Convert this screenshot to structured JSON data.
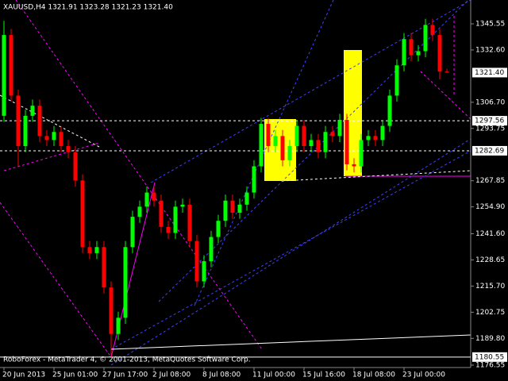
{
  "chart_data": {
    "type": "candlestick",
    "title": "XAUUSD,H4  1321.91 1323.28 1321.23 1321.40",
    "footer": "RoboForex - MetaTrader 4, © 2001-2013, MetaQuotes Software Corp.",
    "categories": [
      "20 Jun 2013",
      null,
      null,
      null,
      null,
      null,
      null,
      "25 Jun 01:00",
      null,
      null,
      null,
      null,
      null,
      null,
      "27 Jun 17:00",
      null,
      null,
      null,
      null,
      null,
      null,
      "2 Jul 08:00",
      null,
      null,
      null,
      null,
      null,
      null,
      "8 Jul 08:00",
      null,
      null,
      null,
      null,
      null,
      null,
      "11 Jul 00:00",
      null,
      null,
      null,
      null,
      null,
      null,
      "15 Jul 16:00",
      null,
      null,
      null,
      null,
      null,
      null,
      "18 Jul 08:00",
      null,
      null,
      null,
      null,
      null,
      null,
      "23 Jul 00:00",
      null,
      null,
      null,
      null,
      null,
      null
    ],
    "open": [
      1300,
      1340,
      1310,
      1285,
      1300,
      1305,
      1290,
      1288,
      1292,
      1285,
      1282,
      1268,
      1235,
      1232,
      1235,
      1215,
      1192,
      1200,
      1235,
      1250,
      1255,
      1262,
      1258,
      1245,
      1242,
      1255,
      1256,
      1238,
      1218,
      1228,
      1240,
      1248,
      1258,
      1252,
      1256,
      1262,
      1275,
      1296,
      1285,
      1290,
      1278,
      1285,
      1295,
      1285,
      1288,
      1282,
      1292,
      1290,
      1298,
      1276,
      1275,
      1288,
      1290,
      1288,
      1295,
      1310,
      1325,
      1338,
      1330,
      1332,
      1345,
      1340,
      1321.91
    ],
    "high": [
      1347,
      1343,
      1313,
      1303,
      1308,
      1308,
      1293,
      1295,
      1295,
      1288,
      1285,
      1271,
      1238,
      1238,
      1238,
      1218,
      1203,
      1238,
      1253,
      1258,
      1265,
      1265,
      1261,
      1248,
      1258,
      1259,
      1259,
      1241,
      1231,
      1243,
      1251,
      1261,
      1261,
      1259,
      1265,
      1278,
      1299,
      1299,
      1293,
      1293,
      1288,
      1298,
      1298,
      1291,
      1291,
      1295,
      1295,
      1301,
      1301,
      1279,
      1291,
      1293,
      1293,
      1298,
      1313,
      1328,
      1341,
      1341,
      1335,
      1348,
      1348,
      1343,
      1323.28
    ],
    "low": [
      1297,
      1307,
      1275,
      1282,
      1297,
      1287,
      1285,
      1285,
      1282,
      1279,
      1265,
      1232,
      1229,
      1229,
      1212,
      1180.55,
      1189,
      1197,
      1232,
      1247,
      1252,
      1255,
      1242,
      1239,
      1239,
      1252,
      1235,
      1215,
      1215,
      1225,
      1237,
      1245,
      1249,
      1249,
      1253,
      1259,
      1272,
      1282,
      1282,
      1275,
      1275,
      1282,
      1282,
      1282,
      1279,
      1279,
      1287,
      1287,
      1273,
      1272,
      1272,
      1285,
      1285,
      1285,
      1292,
      1307,
      1322,
      1327,
      1327,
      1329,
      1337,
      1318,
      1321.23
    ],
    "close": [
      1340,
      1310,
      1285,
      1300,
      1305,
      1290,
      1288,
      1292,
      1285,
      1282,
      1268,
      1235,
      1232,
      1235,
      1215,
      1192,
      1200,
      1235,
      1250,
      1255,
      1262,
      1258,
      1245,
      1242,
      1255,
      1256,
      1238,
      1218,
      1228,
      1240,
      1248,
      1258,
      1252,
      1256,
      1262,
      1275,
      1296,
      1285,
      1290,
      1278,
      1285,
      1295,
      1285,
      1288,
      1282,
      1292,
      1290,
      1298,
      1276,
      1275,
      1288,
      1290,
      1288,
      1295,
      1310,
      1325,
      1338,
      1330,
      1332,
      1345,
      1340,
      1321.91,
      1321.4
    ],
    "up_color": "#00ff00",
    "down_color": "#ff0000",
    "ylim": [
      1175.37,
      1357.34
    ],
    "yticks": [
      1345.55,
      {
        "value": 1332.6,
        "label": "1332.60"
      },
      {
        "value": 1306.7,
        "label": "1306.70"
      },
      1293.75,
      1267.85,
      {
        "value": 1254.9,
        "label": "1254.90"
      },
      {
        "value": 1241.6,
        "label": "1241.60"
      },
      1228.65,
      {
        "value": 1215.7,
        "label": "1215.70"
      },
      1202.75,
      {
        "value": 1189.8,
        "label": "1189.80"
      },
      1176.55
    ],
    "levels": [
      {
        "value": 1321.4,
        "label": "1321.40"
      },
      1297.56,
      1282.69,
      1180.55
    ]
  }
}
